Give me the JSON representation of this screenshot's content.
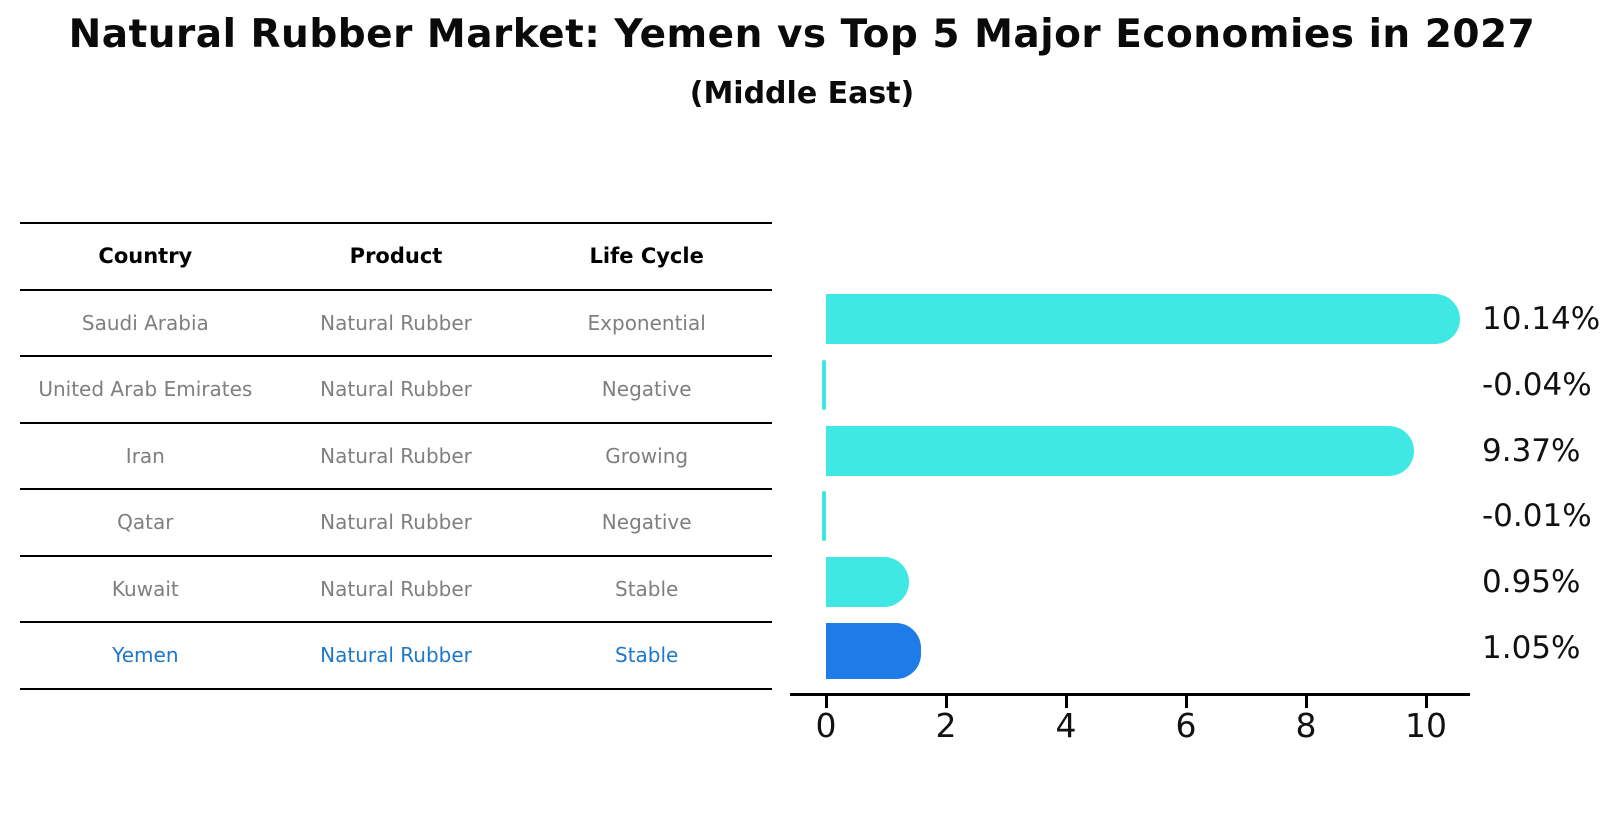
{
  "title": "Natural Rubber Market: Yemen vs Top 5 Major Economies in 2027",
  "subtitle": "(Middle East)",
  "table": {
    "headers": [
      "Country",
      "Product",
      "Life Cycle"
    ],
    "rows": [
      {
        "country": "Saudi Arabia",
        "product": "Natural Rubber",
        "life_cycle": "Exponential",
        "highlight": false
      },
      {
        "country": "United Arab Emirates",
        "product": "Natural Rubber",
        "life_cycle": "Negative",
        "highlight": false
      },
      {
        "country": "Iran",
        "product": "Natural Rubber",
        "life_cycle": "Growing",
        "highlight": false
      },
      {
        "country": "Qatar",
        "product": "Natural Rubber",
        "life_cycle": "Negative",
        "highlight": false
      },
      {
        "country": "Kuwait",
        "product": "Natural Rubber",
        "life_cycle": "Stable",
        "highlight": false
      },
      {
        "country": "Yemen",
        "product": "Natural Rubber",
        "life_cycle": "Stable",
        "highlight": true
      }
    ]
  },
  "chart_data": {
    "type": "bar",
    "orientation": "horizontal",
    "categories": [
      "Saudi Arabia",
      "United Arab Emirates",
      "Iran",
      "Qatar",
      "Kuwait",
      "Yemen"
    ],
    "values": [
      10.14,
      -0.04,
      9.37,
      -0.01,
      0.95,
      1.05
    ],
    "value_labels": [
      "10.14%",
      "-0.04%",
      "9.37%",
      "-0.01%",
      "0.95%",
      "1.05%"
    ],
    "highlight_index": 5,
    "xticks": [
      "0",
      "2",
      "4",
      "6",
      "8",
      "10"
    ],
    "xtick_values": [
      0,
      2,
      4,
      6,
      8,
      10
    ],
    "xlim": [
      -0.6,
      10.7
    ],
    "grid": false,
    "legend": "none",
    "xlabel": "",
    "ylabel": ""
  },
  "colors": {
    "bar_default": "#40e8e4",
    "bar_highlight": "#1e7ce8",
    "highlight_text": "#1f77c8",
    "table_text": "#7f7f7f",
    "axis": "#000000"
  }
}
